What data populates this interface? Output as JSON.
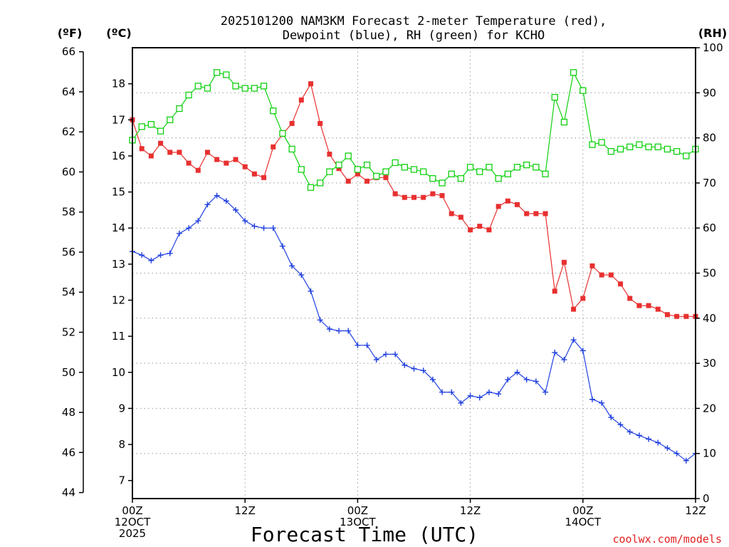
{
  "chart_data": {
    "type": "line",
    "title_line1": "2025101200 NAM3KM Forecast 2-meter Temperature (red),",
    "title_line2": "Dewpoint (blue), RH (green) for KCHO",
    "xlabel": "Forecast Time (UTC)",
    "credit": "coolwx.com/models",
    "units": {
      "left_outer": "(ºF)",
      "left_inner": "(ºC)",
      "right": "(RH)"
    },
    "x_range_hours": [
      0,
      60
    ],
    "x_ticks": [
      {
        "hour": 0,
        "lines": [
          "00Z",
          "12OCT",
          "2025"
        ]
      },
      {
        "hour": 12,
        "lines": [
          "12Z"
        ]
      },
      {
        "hour": 24,
        "lines": [
          "00Z",
          "13OCT"
        ]
      },
      {
        "hour": 36,
        "lines": [
          "12Z"
        ]
      },
      {
        "hour": 48,
        "lines": [
          "00Z",
          "14OCT"
        ]
      },
      {
        "hour": 60,
        "lines": [
          "12Z"
        ]
      }
    ],
    "celsius_axis": {
      "range": [
        6.5,
        19
      ],
      "ticks": [
        "7",
        "8",
        "9",
        "10",
        "11",
        "12",
        "13",
        "14",
        "15",
        "16",
        "17",
        "18"
      ]
    },
    "fahrenheit_axis": {
      "ticks": [
        "44",
        "46",
        "48",
        "50",
        "52",
        "54",
        "56",
        "58",
        "60",
        "62",
        "64",
        "66"
      ]
    },
    "rh_axis": {
      "range": [
        0,
        100
      ],
      "ticks": [
        "0",
        "10",
        "20",
        "30",
        "40",
        "50",
        "60",
        "70",
        "80",
        "90",
        "100"
      ]
    },
    "hours": [
      0,
      1,
      2,
      3,
      4,
      5,
      6,
      7,
      8,
      9,
      10,
      11,
      12,
      13,
      14,
      15,
      16,
      17,
      18,
      19,
      20,
      21,
      22,
      23,
      24,
      25,
      26,
      27,
      28,
      29,
      30,
      31,
      32,
      33,
      34,
      35,
      36,
      37,
      38,
      39,
      40,
      41,
      42,
      43,
      44,
      45,
      46,
      47,
      48,
      49,
      50,
      51,
      52,
      53,
      54,
      55,
      56,
      57,
      58,
      59,
      60
    ],
    "series": [
      {
        "name": "Temperature",
        "units": "C",
        "color": "#e83030",
        "marker": "filled-square",
        "values": [
          17.0,
          16.2,
          16.0,
          16.35,
          16.1,
          16.1,
          15.8,
          15.6,
          16.1,
          15.9,
          15.8,
          15.9,
          15.7,
          15.5,
          15.4,
          16.25,
          16.6,
          16.9,
          17.55,
          18.0,
          16.9,
          16.05,
          15.65,
          15.3,
          15.5,
          15.3,
          15.4,
          15.4,
          14.95,
          14.85,
          14.85,
          14.85,
          14.95,
          14.9,
          14.4,
          14.3,
          13.95,
          14.05,
          13.95,
          14.6,
          14.75,
          14.65,
          14.4,
          14.4,
          14.4,
          12.25,
          13.05,
          11.75,
          12.05,
          12.95,
          12.7,
          12.7,
          12.45,
          12.05,
          11.85,
          11.85,
          11.75,
          11.6,
          11.55,
          11.55,
          11.55
        ]
      },
      {
        "name": "Dewpoint",
        "units": "C",
        "color": "#2040e0",
        "marker": "plus",
        "values": [
          13.35,
          13.25,
          13.1,
          13.25,
          13.3,
          13.85,
          14.0,
          14.2,
          14.65,
          14.9,
          14.75,
          14.5,
          14.2,
          14.05,
          14.0,
          14.0,
          13.5,
          12.95,
          12.7,
          12.25,
          11.45,
          11.2,
          11.15,
          11.15,
          10.75,
          10.75,
          10.35,
          10.5,
          10.5,
          10.2,
          10.1,
          10.05,
          9.8,
          9.45,
          9.45,
          9.15,
          9.35,
          9.3,
          9.45,
          9.4,
          9.8,
          10.0,
          9.8,
          9.75,
          9.45,
          10.55,
          10.35,
          10.9,
          10.6,
          9.25,
          9.15,
          8.75,
          8.55,
          8.35,
          8.25,
          8.15,
          8.05,
          7.9,
          7.75,
          7.55,
          7.75
        ]
      },
      {
        "name": "RH",
        "units": "%",
        "color": "#10d010",
        "marker": "open-square",
        "values": [
          79.5,
          82.5,
          83.0,
          81.5,
          84.0,
          86.5,
          89.5,
          91.5,
          91.0,
          94.5,
          94.0,
          91.5,
          91.0,
          91.0,
          91.5,
          86.0,
          81.0,
          77.5,
          73.0,
          69.0,
          70.0,
          72.5,
          74.0,
          76.0,
          73.0,
          74.0,
          71.5,
          72.5,
          74.5,
          73.5,
          73.0,
          72.5,
          71.0,
          70.0,
          72.0,
          71.0,
          73.5,
          72.5,
          73.5,
          71.0,
          72.0,
          73.5,
          74.0,
          73.5,
          72.0,
          89.0,
          83.5,
          94.5,
          90.5,
          78.5,
          79.0,
          77.0,
          77.5,
          78.0,
          78.5,
          78.0,
          78.0,
          77.5,
          77.0,
          76.0,
          77.5
        ]
      }
    ]
  }
}
